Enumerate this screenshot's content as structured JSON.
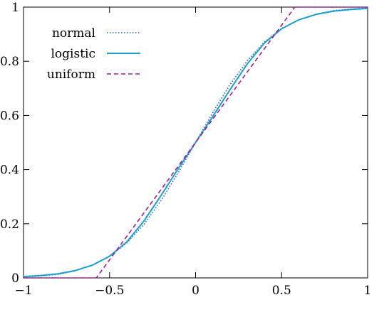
{
  "chart_data": {
    "type": "line",
    "title": "",
    "xlabel": "",
    "ylabel": "",
    "xlim": [
      -1,
      1
    ],
    "ylim": [
      0,
      1
    ],
    "grid": false,
    "legend_position": "top-left",
    "x_ticks": [
      {
        "value": -1,
        "label": "−1"
      },
      {
        "value": -0.5,
        "label": "−0.5"
      },
      {
        "value": 0,
        "label": "0"
      },
      {
        "value": 0.5,
        "label": "0.5"
      },
      {
        "value": 1,
        "label": "1"
      }
    ],
    "y_ticks": [
      {
        "value": 0,
        "label": "0"
      },
      {
        "value": 0.2,
        "label": "0.2"
      },
      {
        "value": 0.4,
        "label": "0.4"
      },
      {
        "value": 0.6,
        "label": "0.6"
      },
      {
        "value": 0.8,
        "label": "0.8"
      },
      {
        "value": 1,
        "label": "1"
      }
    ],
    "series": [
      {
        "name": "normal",
        "color": "#1f5fd0",
        "dash": "dotted",
        "x": [
          -1.0,
          -0.9,
          -0.8,
          -0.7,
          -0.6,
          -0.5,
          -0.4,
          -0.3,
          -0.2,
          -0.1,
          0.0,
          0.1,
          0.2,
          0.3,
          0.4,
          0.5,
          0.6,
          0.7,
          0.8,
          0.9,
          1.0
        ],
        "y": [
          0.003,
          0.007,
          0.013,
          0.026,
          0.047,
          0.079,
          0.129,
          0.198,
          0.286,
          0.39,
          0.5,
          0.61,
          0.714,
          0.802,
          0.871,
          0.921,
          0.953,
          0.974,
          0.987,
          0.993,
          0.997
        ]
      },
      {
        "name": "logistic",
        "color": "#1c9fcf",
        "dash": "solid",
        "x": [
          -1.0,
          -0.9,
          -0.8,
          -0.7,
          -0.6,
          -0.5,
          -0.4,
          -0.3,
          -0.2,
          -0.1,
          0.0,
          0.1,
          0.2,
          0.3,
          0.4,
          0.5,
          0.6,
          0.7,
          0.8,
          0.9,
          1.0
        ],
        "y": [
          0.005,
          0.009,
          0.015,
          0.027,
          0.047,
          0.08,
          0.133,
          0.21,
          0.305,
          0.404,
          0.5,
          0.596,
          0.695,
          0.79,
          0.867,
          0.92,
          0.953,
          0.973,
          0.985,
          0.991,
          0.995
        ]
      },
      {
        "name": "uniform",
        "color": "#a0199a",
        "dash": "dashed",
        "x": [
          -1.0,
          -0.577,
          0.577,
          1.0
        ],
        "y": [
          0.0,
          0.0,
          1.0,
          1.0
        ]
      }
    ]
  }
}
